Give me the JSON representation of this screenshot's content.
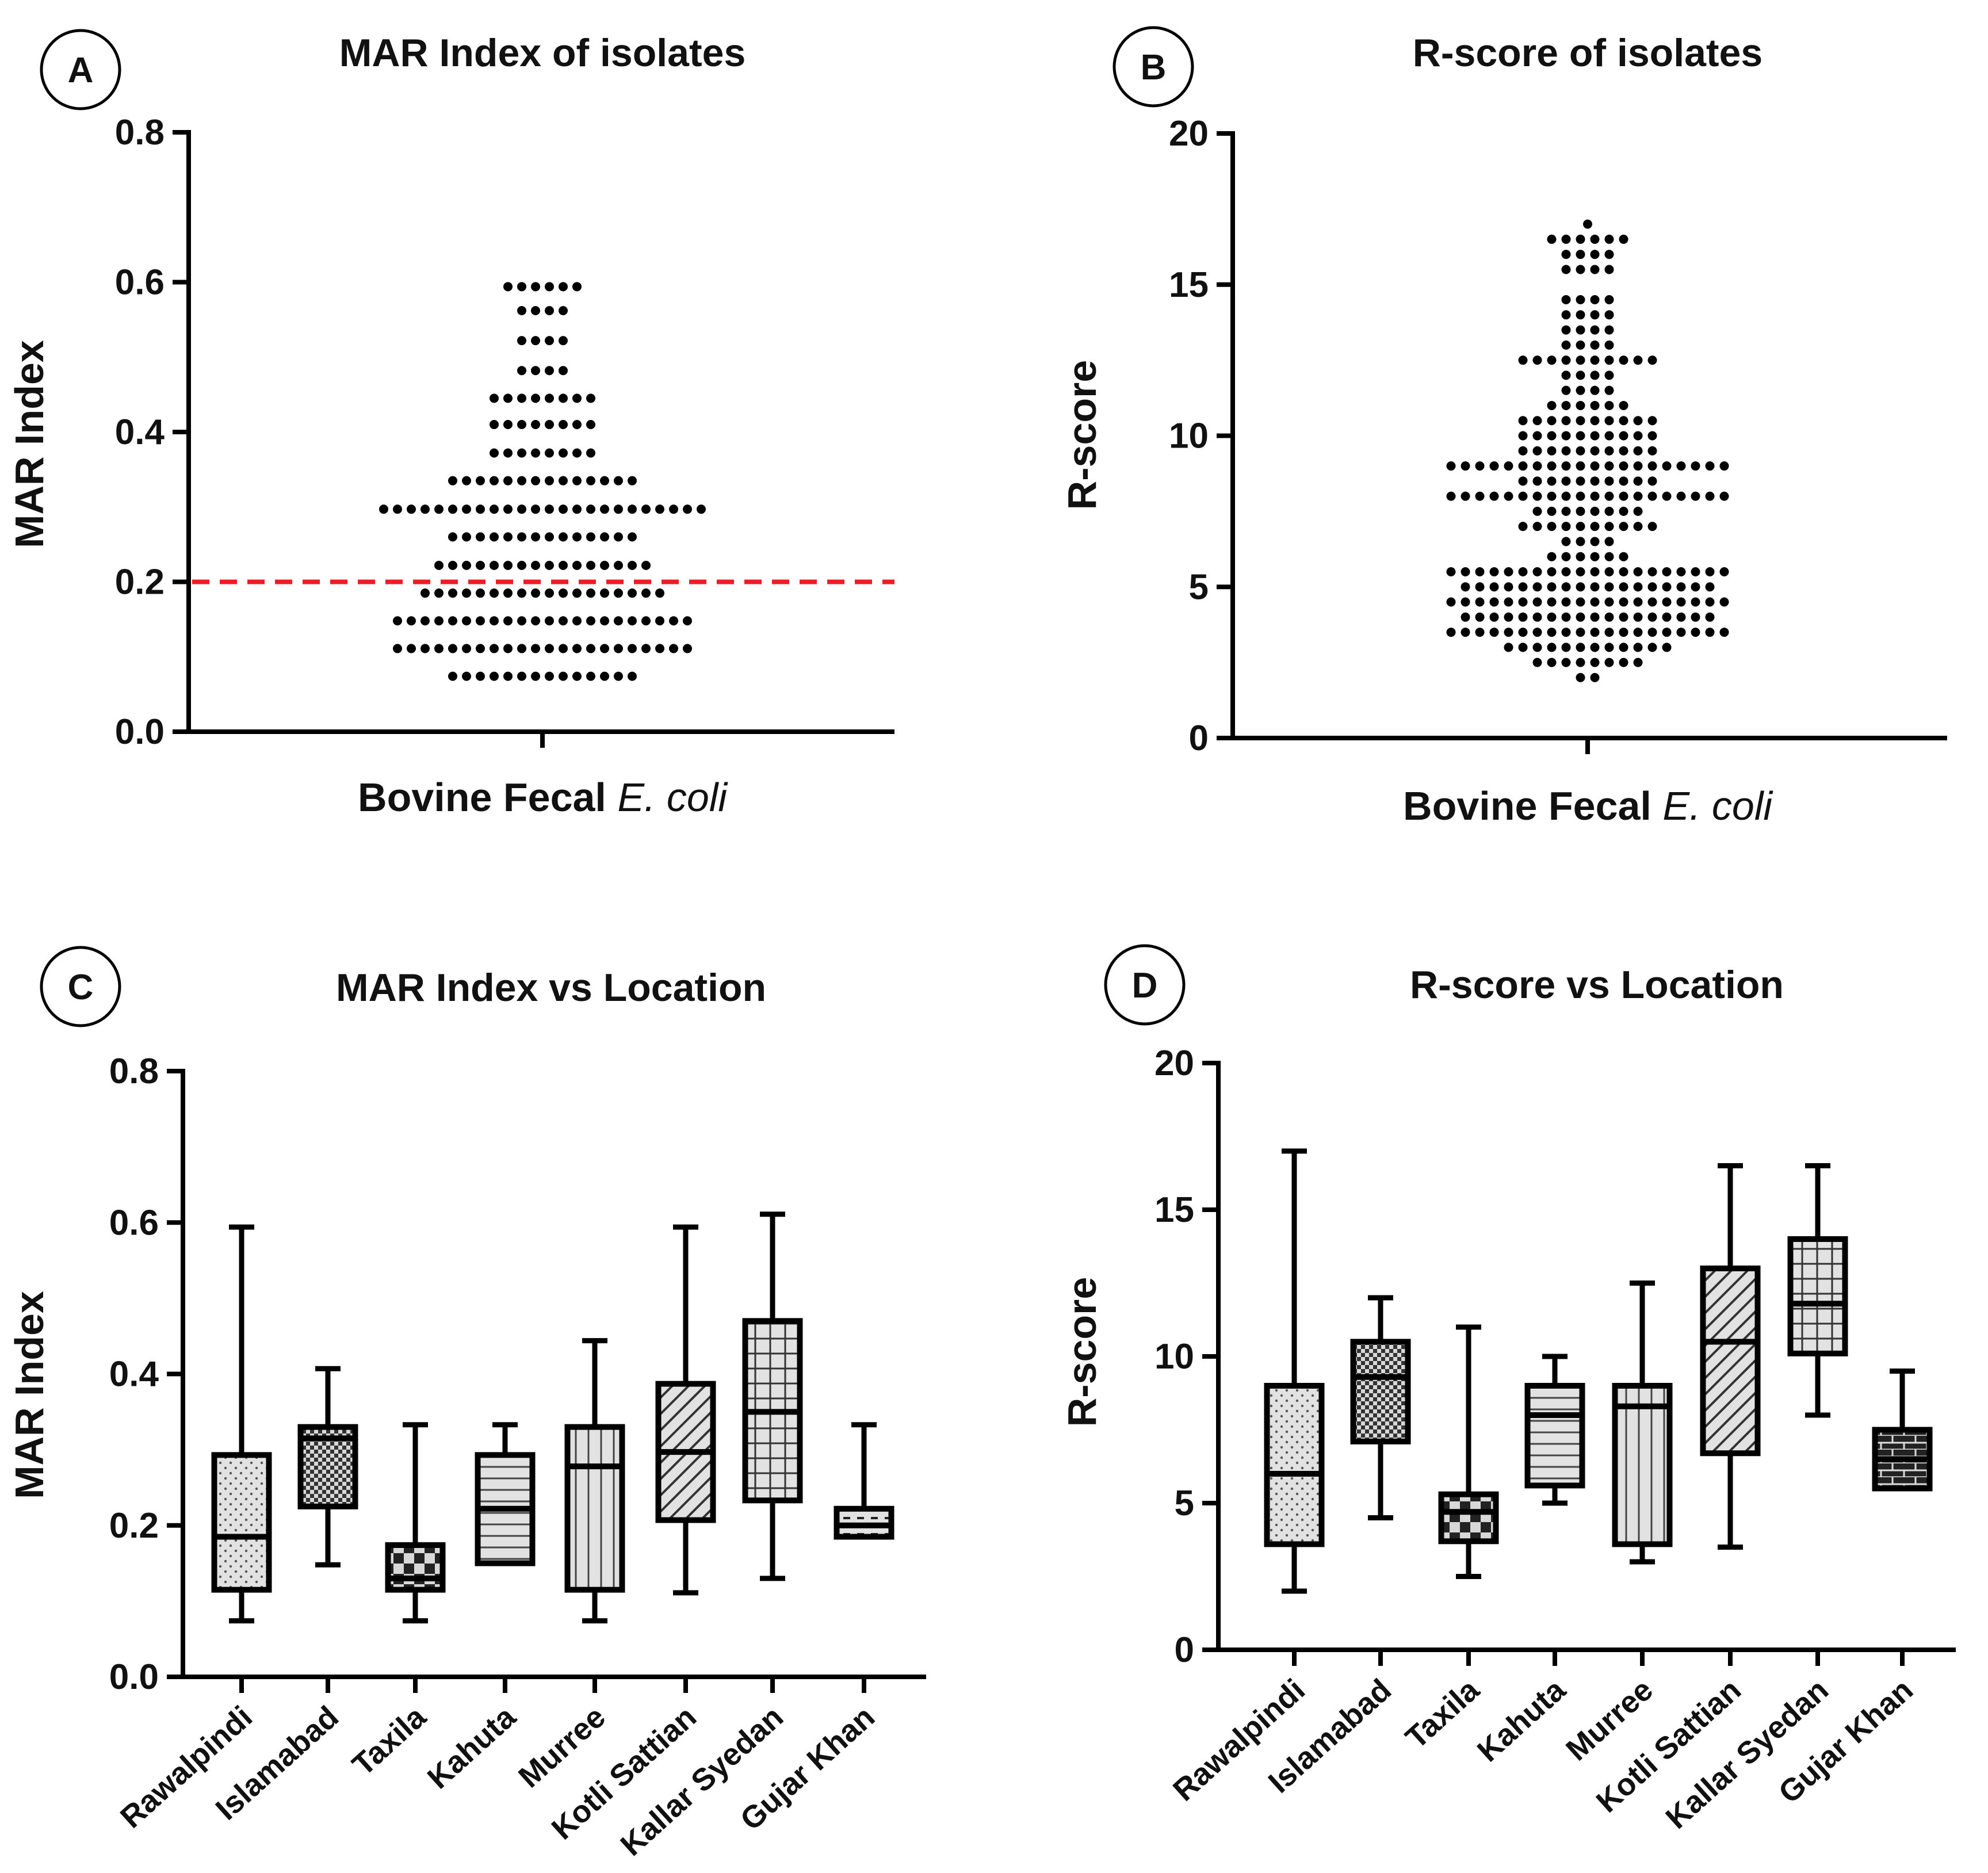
{
  "chart_data": [
    {
      "panel": "A",
      "type": "scatter",
      "title": "MAR Index of isolates",
      "xlabel_main": "Bovine Fecal ",
      "xlabel_italic": "E. coli",
      "ylabel": "MAR Index",
      "ylim": [
        0,
        0.8
      ],
      "yticks": [
        "0.0",
        "0.2",
        "0.4",
        "0.6",
        "0.8"
      ],
      "reference_line": {
        "y": 0.2,
        "color": "#ee1c25",
        "style": "dashed"
      },
      "rows": [
        {
          "y": 0.594,
          "count": 6
        },
        {
          "y": 0.562,
          "count": 4
        },
        {
          "y": 0.522,
          "count": 4
        },
        {
          "y": 0.482,
          "count": 4
        },
        {
          "y": 0.445,
          "count": 8
        },
        {
          "y": 0.41,
          "count": 8
        },
        {
          "y": 0.372,
          "count": 8
        },
        {
          "y": 0.335,
          "count": 14
        },
        {
          "y": 0.297,
          "count": 24
        },
        {
          "y": 0.26,
          "count": 14
        },
        {
          "y": 0.222,
          "count": 16
        },
        {
          "y": 0.185,
          "count": 18
        },
        {
          "y": 0.148,
          "count": 22
        },
        {
          "y": 0.111,
          "count": 22
        },
        {
          "y": 0.074,
          "count": 14
        }
      ]
    },
    {
      "panel": "B",
      "type": "scatter",
      "title": "R-score of isolates",
      "xlabel_main": "Bovine Fecal ",
      "xlabel_italic": "E. coli",
      "ylabel": "R-score",
      "ylim": [
        0,
        20
      ],
      "yticks": [
        "0",
        "5",
        "10",
        "15",
        "20"
      ],
      "rows": [
        {
          "y": 17.0,
          "count": 1
        },
        {
          "y": 16.5,
          "count": 6
        },
        {
          "y": 16.0,
          "count": 4
        },
        {
          "y": 15.5,
          "count": 4
        },
        {
          "y": 14.5,
          "count": 4
        },
        {
          "y": 14.0,
          "count": 4
        },
        {
          "y": 13.5,
          "count": 4
        },
        {
          "y": 13.0,
          "count": 4
        },
        {
          "y": 12.5,
          "count": 10
        },
        {
          "y": 12.0,
          "count": 4
        },
        {
          "y": 11.5,
          "count": 4
        },
        {
          "y": 11.0,
          "count": 6
        },
        {
          "y": 10.5,
          "count": 10
        },
        {
          "y": 10.0,
          "count": 10
        },
        {
          "y": 9.5,
          "count": 10
        },
        {
          "y": 9.0,
          "count": 20
        },
        {
          "y": 8.5,
          "count": 10
        },
        {
          "y": 8.0,
          "count": 20
        },
        {
          "y": 7.5,
          "count": 8
        },
        {
          "y": 7.0,
          "count": 10
        },
        {
          "y": 6.5,
          "count": 4
        },
        {
          "y": 6.0,
          "count": 6
        },
        {
          "y": 5.5,
          "count": 20
        },
        {
          "y": 5.0,
          "count": 18
        },
        {
          "y": 4.5,
          "count": 20
        },
        {
          "y": 4.0,
          "count": 18
        },
        {
          "y": 3.5,
          "count": 20
        },
        {
          "y": 3.0,
          "count": 12
        },
        {
          "y": 2.5,
          "count": 8
        },
        {
          "y": 2.0,
          "count": 2
        }
      ]
    },
    {
      "panel": "C",
      "type": "box",
      "title": "MAR Index vs Location",
      "ylabel": "MAR Index",
      "ylim": [
        0,
        0.8
      ],
      "yticks": [
        "0.0",
        "0.2",
        "0.4",
        "0.6",
        "0.8"
      ],
      "categories": [
        "Rawalpindi",
        "Islamabad",
        "Taxila",
        "Kahuta",
        "Murree",
        "Kotli Sattian",
        "Kallar Syedan",
        "Gujar Khan"
      ],
      "boxes": [
        {
          "min": 0.074,
          "q1": 0.115,
          "median": 0.185,
          "q3": 0.293,
          "max": 0.594,
          "pattern": "dots"
        },
        {
          "min": 0.148,
          "q1": 0.225,
          "median": 0.315,
          "q3": 0.33,
          "max": 0.407,
          "pattern": "checker"
        },
        {
          "min": 0.074,
          "q1": 0.115,
          "median": 0.13,
          "q3": 0.174,
          "max": 0.333,
          "pattern": "bigchecker"
        },
        {
          "min": 0.15,
          "q1": 0.15,
          "median": 0.222,
          "q3": 0.293,
          "max": 0.333,
          "pattern": "hlines"
        },
        {
          "min": 0.074,
          "q1": 0.115,
          "median": 0.278,
          "q3": 0.33,
          "max": 0.444,
          "pattern": "vlines"
        },
        {
          "min": 0.111,
          "q1": 0.207,
          "median": 0.297,
          "q3": 0.387,
          "max": 0.594,
          "pattern": "diagonal"
        },
        {
          "min": 0.13,
          "q1": 0.233,
          "median": 0.35,
          "q3": 0.47,
          "max": 0.611,
          "pattern": "grid"
        },
        {
          "min": 0.185,
          "q1": 0.185,
          "median": 0.2,
          "q3": 0.222,
          "max": 0.333,
          "pattern": "dashes"
        }
      ]
    },
    {
      "panel": "D",
      "type": "box",
      "title": "R-score vs Location",
      "ylabel": "R-score",
      "ylim": [
        0,
        20
      ],
      "yticks": [
        "0",
        "5",
        "10",
        "15",
        "20"
      ],
      "categories": [
        "Rawalpindi",
        "Islamabad",
        "Taxila",
        "Kahuta",
        "Murree",
        "Kotli Sattian",
        "Kallar Syedan",
        "Gujar Khan"
      ],
      "boxes": [
        {
          "min": 2.0,
          "q1": 3.6,
          "median": 6.0,
          "q3": 9.0,
          "max": 17.0,
          "pattern": "dots"
        },
        {
          "min": 4.5,
          "q1": 7.1,
          "median": 9.3,
          "q3": 10.5,
          "max": 12.0,
          "pattern": "checker"
        },
        {
          "min": 2.5,
          "q1": 3.7,
          "median": 4.7,
          "q3": 5.3,
          "max": 11.0,
          "pattern": "bigchecker"
        },
        {
          "min": 5.0,
          "q1": 5.6,
          "median": 8.0,
          "q3": 9.0,
          "max": 10.0,
          "pattern": "hlines"
        },
        {
          "min": 3.0,
          "q1": 3.6,
          "median": 8.3,
          "q3": 9.0,
          "max": 12.5,
          "pattern": "vlines"
        },
        {
          "min": 3.5,
          "q1": 6.7,
          "median": 10.5,
          "q3": 13.0,
          "max": 16.5,
          "pattern": "diagonal"
        },
        {
          "min": 8.0,
          "q1": 10.1,
          "median": 11.8,
          "q3": 14.0,
          "max": 16.5,
          "pattern": "grid"
        },
        {
          "min": 5.5,
          "q1": 5.5,
          "median": 6.5,
          "q3": 7.5,
          "max": 9.5,
          "pattern": "brick"
        }
      ]
    }
  ]
}
